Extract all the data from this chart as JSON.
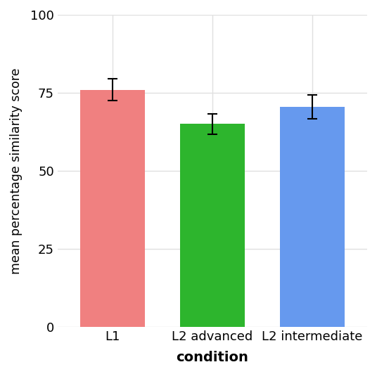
{
  "categories": [
    "L1",
    "L2 advanced",
    "L2 intermediate"
  ],
  "values": [
    76.0,
    65.0,
    70.5
  ],
  "errors": [
    3.5,
    3.2,
    3.8
  ],
  "bar_colors": [
    "#F08080",
    "#2DB52D",
    "#6699EE"
  ],
  "background_color": "#FFFFFF",
  "plot_bg_color": "#FFFFFF",
  "grid_color": "#E0E0E0",
  "xlabel": "condition",
  "ylabel": "mean percentage similarity score",
  "ylim": [
    0,
    100
  ],
  "yticks": [
    0,
    25,
    50,
    75,
    100
  ],
  "xlabel_fontsize": 14,
  "ylabel_fontsize": 12.5,
  "tick_fontsize": 13,
  "bar_width": 0.65,
  "error_capsize": 5,
  "error_linewidth": 1.5,
  "xlabel_fontweight": "bold"
}
